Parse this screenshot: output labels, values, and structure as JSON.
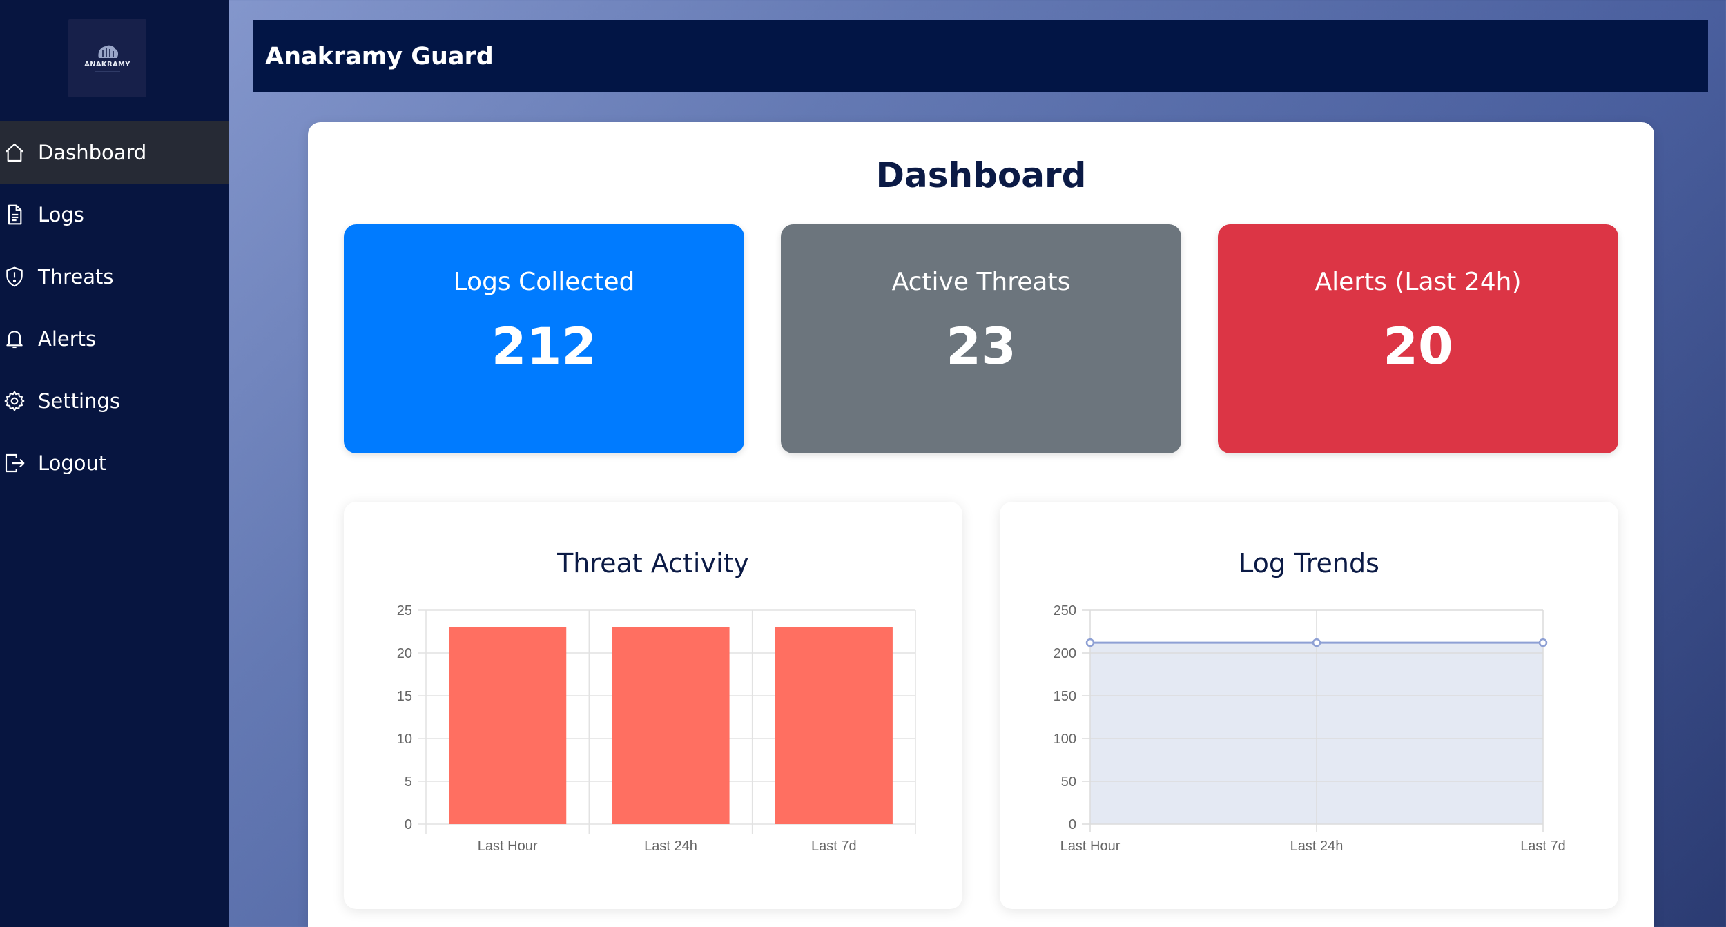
{
  "app": {
    "logo_text": "ANAKRAMY",
    "title": "Anakramy Guard"
  },
  "sidebar": {
    "items": [
      {
        "label": "Dashboard",
        "icon": "home-icon",
        "active": true
      },
      {
        "label": "Logs",
        "icon": "document-icon",
        "active": false
      },
      {
        "label": "Threats",
        "icon": "shield-icon",
        "active": false
      },
      {
        "label": "Alerts",
        "icon": "bell-icon",
        "active": false
      },
      {
        "label": "Settings",
        "icon": "gear-icon",
        "active": false
      },
      {
        "label": "Logout",
        "icon": "logout-icon",
        "active": false
      }
    ]
  },
  "main": {
    "title": "Dashboard",
    "stats": [
      {
        "label": "Logs Collected",
        "value": "212",
        "color": "#007bff"
      },
      {
        "label": "Active Threats",
        "value": "23",
        "color": "#6c757d"
      },
      {
        "label": "Alerts (Last 24h)",
        "value": "20",
        "color": "#dc3545"
      }
    ]
  },
  "colors": {
    "sidebar_bg": "#071540",
    "topbar_bg": "#021545",
    "bar_fill": "#ff6f61",
    "line_color": "#8ea0d4",
    "area_fill": "#e4e9f3"
  },
  "chart_data": [
    {
      "type": "bar",
      "title": "Threat Activity",
      "categories": [
        "Last Hour",
        "Last 24h",
        "Last 7d"
      ],
      "values": [
        23,
        23,
        23
      ],
      "ylim": [
        0,
        25
      ],
      "yticks": [
        0,
        5,
        10,
        15,
        20,
        25
      ],
      "grid": true
    },
    {
      "type": "area",
      "title": "Log Trends",
      "categories": [
        "Last Hour",
        "Last 24h",
        "Last 7d"
      ],
      "values": [
        212,
        212,
        212
      ],
      "ylim": [
        0,
        250
      ],
      "yticks": [
        0,
        50,
        100,
        150,
        200,
        250
      ],
      "grid": true
    }
  ]
}
